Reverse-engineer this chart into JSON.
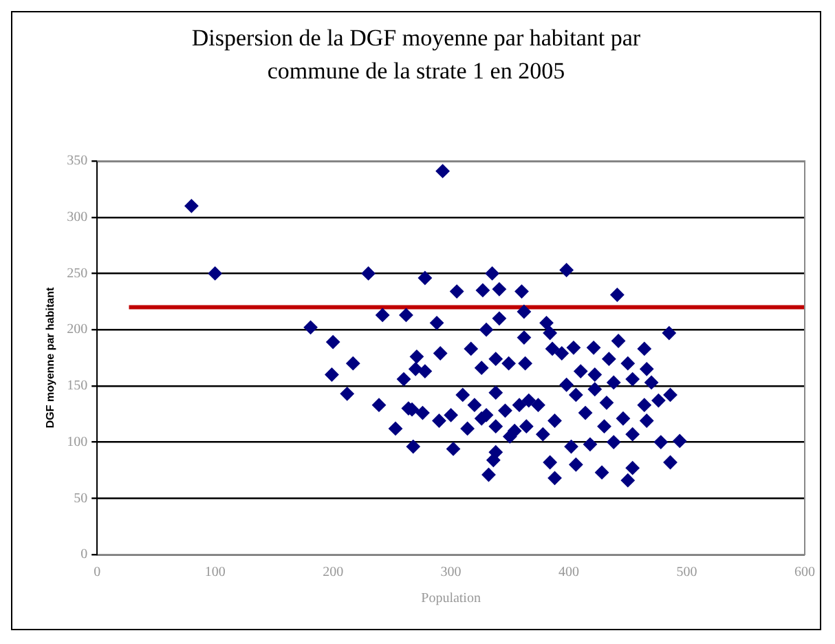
{
  "chart_data": {
    "type": "scatter",
    "title": "Dispersion de la DGF moyenne par habitant par\ncommune de la strate 1 en 2005",
    "xlabel": "Population",
    "ylabel": "DGF moyenne par habitant",
    "xlim": [
      0,
      600
    ],
    "xticks": [
      0,
      100,
      200,
      300,
      400,
      500,
      600
    ],
    "ylim": [
      0,
      350
    ],
    "yticks": [
      0,
      50,
      100,
      150,
      200,
      250,
      300,
      350
    ],
    "grid": "y",
    "legend": false,
    "series": [
      {
        "marker": "diamond",
        "color": "#000080",
        "x": [
          80,
          100,
          230,
          242,
          262,
          181,
          200,
          199,
          217,
          212,
          239,
          253,
          260,
          267,
          268,
          271,
          293,
          278,
          305,
          335,
          327,
          341,
          360,
          398,
          441,
          288,
          362,
          341,
          330,
          485,
          381,
          362,
          317,
          291,
          278,
          270,
          326,
          338,
          349,
          363,
          384,
          386,
          394,
          404,
          421,
          442,
          464,
          434,
          450,
          466,
          410,
          422,
          438,
          454,
          470,
          398,
          422,
          432,
          464,
          486,
          476,
          310,
          320,
          338,
          330,
          346,
          358,
          374,
          264,
          276,
          290,
          300,
          314,
          326,
          338,
          364,
          388,
          366,
          414,
          406,
          430,
          446,
          466,
          454,
          402,
          418,
          438,
          478,
          494,
          302,
          338,
          350,
          354,
          332,
          336,
          384,
          388,
          406,
          428,
          450,
          454,
          486,
          378
        ],
        "values": [
          310,
          250,
          250,
          213,
          213,
          202,
          189,
          160,
          170,
          143,
          133,
          112,
          156,
          129,
          96,
          176,
          341,
          246,
          234,
          250,
          235,
          236,
          234,
          253,
          231,
          206,
          216,
          210,
          200,
          197,
          206,
          193,
          183,
          179,
          163,
          165,
          166,
          174,
          170,
          170,
          197,
          183,
          179,
          184,
          184,
          190,
          183,
          174,
          170,
          165,
          163,
          160,
          153,
          156,
          153,
          151,
          147,
          135,
          133,
          142,
          137,
          142,
          133,
          144,
          124,
          128,
          133,
          133,
          130,
          126,
          119,
          124,
          112,
          121,
          114,
          114,
          119,
          137,
          126,
          142,
          114,
          121,
          119,
          107,
          96,
          98,
          100,
          100,
          101,
          94,
          91,
          105,
          110,
          71,
          84,
          82,
          68,
          80,
          73,
          66,
          77,
          82,
          107
        ]
      },
      {
        "type": "line",
        "marker": "none",
        "color": "#c00000",
        "x": [
          27,
          600
        ],
        "values": [
          220,
          220
        ]
      }
    ]
  }
}
